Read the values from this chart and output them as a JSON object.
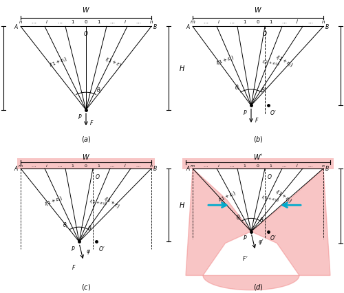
{
  "fig_width": 5.0,
  "fig_height": 4.26,
  "dpi": 100,
  "background": "#ffffff",
  "pink_color": "#f08080",
  "pink_alpha": 0.45,
  "cyan_color": "#00aacc",
  "lw": 0.8,
  "fan_lw": 0.7,
  "fs_label": 6.5,
  "fs_small": 5.5,
  "fs_tiny": 5.0
}
